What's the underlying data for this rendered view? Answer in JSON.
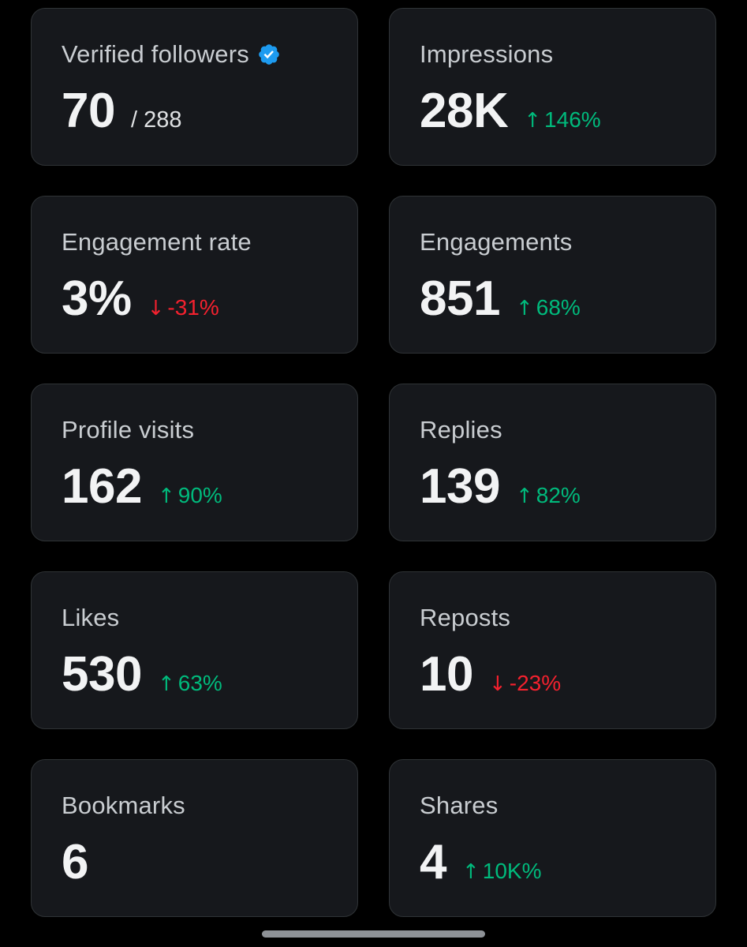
{
  "colors": {
    "background": "#000000",
    "card": "#16181c",
    "border": "#2f3336",
    "positive": "#00ba7c",
    "negative": "#f4212e",
    "verified": "#1d9bf0"
  },
  "cards": [
    {
      "label": "Verified followers",
      "value": "70",
      "total": "/ 288",
      "icon": "verified-badge-icon"
    },
    {
      "label": "Impressions",
      "value": "28K",
      "change": "146%",
      "direction": "up"
    },
    {
      "label": "Engagement rate",
      "value": "3%",
      "change": "-31%",
      "direction": "down"
    },
    {
      "label": "Engagements",
      "value": "851",
      "change": "68%",
      "direction": "up"
    },
    {
      "label": "Profile visits",
      "value": "162",
      "change": "90%",
      "direction": "up"
    },
    {
      "label": "Replies",
      "value": "139",
      "change": "82%",
      "direction": "up"
    },
    {
      "label": "Likes",
      "value": "530",
      "change": "63%",
      "direction": "up"
    },
    {
      "label": "Reposts",
      "value": "10",
      "change": "-23%",
      "direction": "down"
    },
    {
      "label": "Bookmarks",
      "value": "6"
    },
    {
      "label": "Shares",
      "value": "4",
      "change": "10K%",
      "direction": "up"
    }
  ],
  "arrows": {
    "up": "↑",
    "down": "↓"
  }
}
